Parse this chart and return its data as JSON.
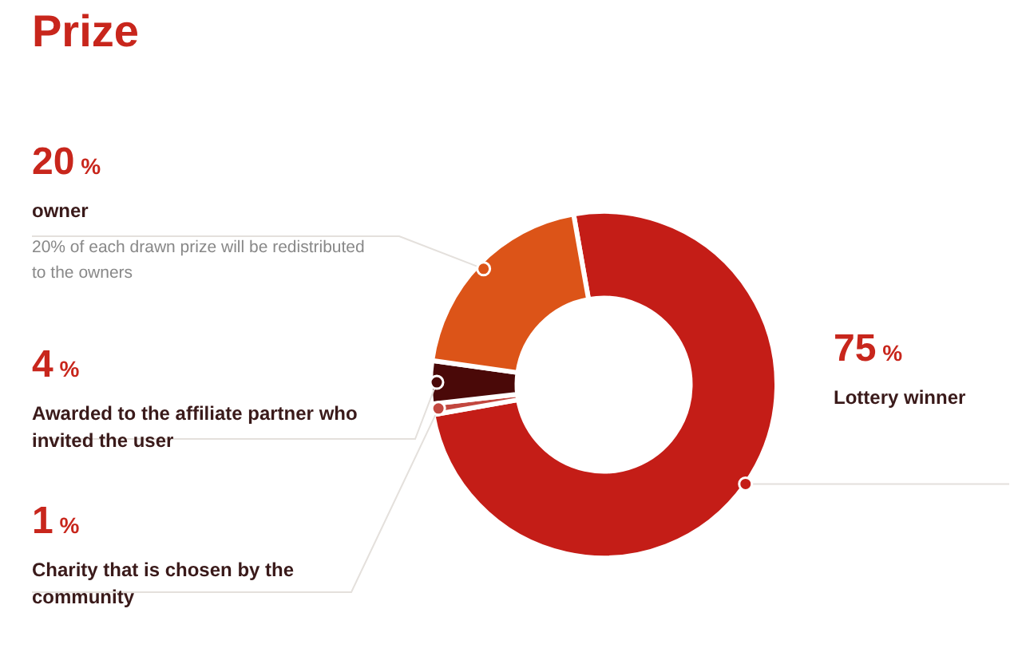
{
  "chart_data": {
    "type": "donut",
    "title": "Prize",
    "categories": [
      "Lottery winner",
      "Charity that is chosen by the community",
      "Awarded to the affiliate partner who invited the user",
      "owner"
    ],
    "values": [
      75,
      1,
      4,
      20
    ],
    "colors": [
      "#c41d17",
      "#c2473f",
      "#4a0908",
      "#dc5418"
    ],
    "value_labels": [
      "75 %",
      "1 %",
      "4 %",
      "20 %"
    ],
    "annotations": [
      "20% of each drawn prize will be redistributed to the owners"
    ]
  }
}
